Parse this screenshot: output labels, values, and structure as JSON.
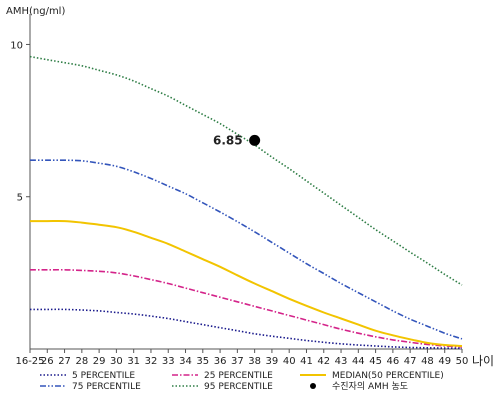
{
  "chart_data": {
    "type": "line",
    "ylabel": "AMH(ng/ml)",
    "xlabel": "나이",
    "categories": [
      "16-25",
      "26",
      "27",
      "28",
      "29",
      "30",
      "31",
      "32",
      "33",
      "34",
      "35",
      "36",
      "37",
      "38",
      "39",
      "40",
      "41",
      "42",
      "43",
      "44",
      "45",
      "46",
      "47",
      "48",
      "49",
      "50"
    ],
    "ylim": [
      0,
      11
    ],
    "yticks": [
      5,
      10
    ],
    "grid": false,
    "legend_position": "bottom",
    "series": [
      {
        "name": "5 PERCENTILE",
        "color": "#1a1a8c",
        "dash": "dotted",
        "values": [
          1.3,
          1.3,
          1.3,
          1.28,
          1.25,
          1.2,
          1.15,
          1.08,
          1.0,
          0.9,
          0.8,
          0.7,
          0.6,
          0.5,
          0.42,
          0.35,
          0.28,
          0.22,
          0.17,
          0.13,
          0.1,
          0.07,
          0.05,
          0.04,
          0.03,
          0.02
        ]
      },
      {
        "name": "25 PERCENTILE",
        "color": "#d4248a",
        "dash": "dashdot",
        "values": [
          2.6,
          2.6,
          2.6,
          2.58,
          2.55,
          2.5,
          2.4,
          2.28,
          2.15,
          2.0,
          1.85,
          1.7,
          1.55,
          1.4,
          1.25,
          1.1,
          0.95,
          0.8,
          0.65,
          0.52,
          0.4,
          0.3,
          0.22,
          0.15,
          0.1,
          0.07
        ]
      },
      {
        "name": "MEDIAN(50 PERCENTILE)",
        "color": "#f2c400",
        "dash": "solid",
        "values": [
          4.2,
          4.2,
          4.2,
          4.15,
          4.08,
          4.0,
          3.85,
          3.65,
          3.45,
          3.2,
          2.95,
          2.7,
          2.42,
          2.15,
          1.9,
          1.65,
          1.42,
          1.2,
          1.0,
          0.8,
          0.6,
          0.45,
          0.32,
          0.2,
          0.13,
          0.1
        ]
      },
      {
        "name": "75 PERCENTILE",
        "color": "#3355bb",
        "dash": "dashdotdot",
        "values": [
          6.2,
          6.2,
          6.2,
          6.18,
          6.1,
          6.0,
          5.82,
          5.6,
          5.35,
          5.1,
          4.8,
          4.5,
          4.18,
          3.85,
          3.5,
          3.15,
          2.8,
          2.48,
          2.15,
          1.85,
          1.55,
          1.25,
          0.98,
          0.75,
          0.52,
          0.33
        ]
      },
      {
        "name": "95 PERCENTILE",
        "color": "#2e7d45",
        "dash": "dotted",
        "values": [
          9.6,
          9.5,
          9.4,
          9.3,
          9.15,
          9.0,
          8.8,
          8.55,
          8.3,
          8.0,
          7.7,
          7.4,
          7.05,
          6.7,
          6.3,
          5.92,
          5.52,
          5.12,
          4.72,
          4.32,
          3.92,
          3.55,
          3.18,
          2.82,
          2.45,
          2.1
        ]
      }
    ],
    "highlight_point": {
      "x": "38",
      "y": 6.85,
      "label": "6.85",
      "legend": "수진자의 AMH 농도",
      "color": "#000000"
    }
  }
}
